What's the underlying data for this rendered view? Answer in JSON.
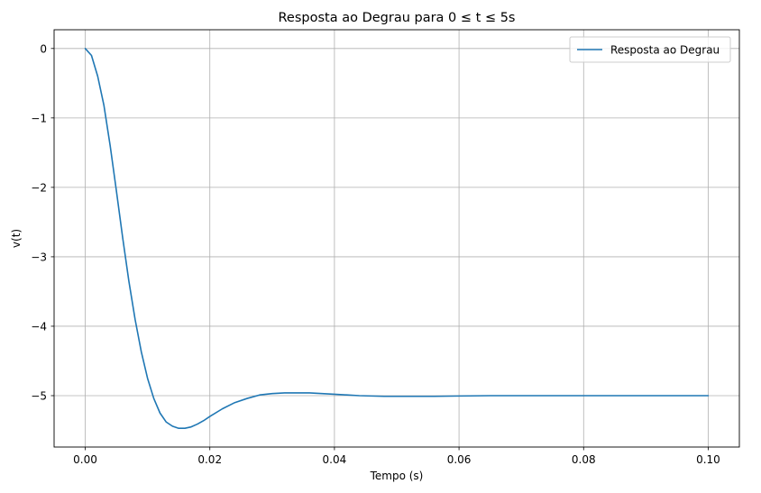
{
  "chart_data": {
    "type": "line",
    "title": "Resposta ao Degrau para 0 ≤ t ≤ 5s",
    "xlabel": "Tempo (s)",
    "ylabel": "v(t)",
    "xlim": [
      -0.005,
      0.105
    ],
    "ylim": [
      -5.74,
      0.27
    ],
    "grid": true,
    "legend_position": "top-right",
    "x_ticks": [
      0.0,
      0.02,
      0.04,
      0.06,
      0.08,
      0.1
    ],
    "x_tick_labels": [
      "0.00",
      "0.02",
      "0.04",
      "0.06",
      "0.08",
      "0.10"
    ],
    "y_ticks": [
      0,
      -1,
      -2,
      -3,
      -4,
      -5
    ],
    "y_tick_labels": [
      "0",
      "−1",
      "−2",
      "−3",
      "−4",
      "−5"
    ],
    "series": [
      {
        "name": "Resposta ao Degrau",
        "color": "#1f77b4",
        "x": [
          0,
          0.001,
          0.002,
          0.003,
          0.004,
          0.005,
          0.006,
          0.007,
          0.008,
          0.009,
          0.01,
          0.011,
          0.012,
          0.013,
          0.014,
          0.015,
          0.016,
          0.017,
          0.018,
          0.019,
          0.02,
          0.022,
          0.024,
          0.026,
          0.028,
          0.03,
          0.032,
          0.034,
          0.036,
          0.038,
          0.04,
          0.042,
          0.044,
          0.046,
          0.048,
          0.05,
          0.053,
          0.056,
          0.06,
          0.065,
          0.07,
          0.08,
          0.09,
          0.1
        ],
        "y": [
          0,
          -0.1,
          -0.4,
          -0.82,
          -1.4,
          -2.05,
          -2.72,
          -3.35,
          -3.9,
          -4.37,
          -4.75,
          -5.04,
          -5.25,
          -5.38,
          -5.44,
          -5.47,
          -5.47,
          -5.45,
          -5.41,
          -5.36,
          -5.3,
          -5.19,
          -5.1,
          -5.04,
          -4.99,
          -4.97,
          -4.96,
          -4.96,
          -4.96,
          -4.97,
          -4.98,
          -4.99,
          -5.0,
          -5.005,
          -5.01,
          -5.01,
          -5.01,
          -5.01,
          -5.005,
          -5.0,
          -5.0,
          -5.0,
          -5.0,
          -5.0
        ]
      }
    ]
  }
}
